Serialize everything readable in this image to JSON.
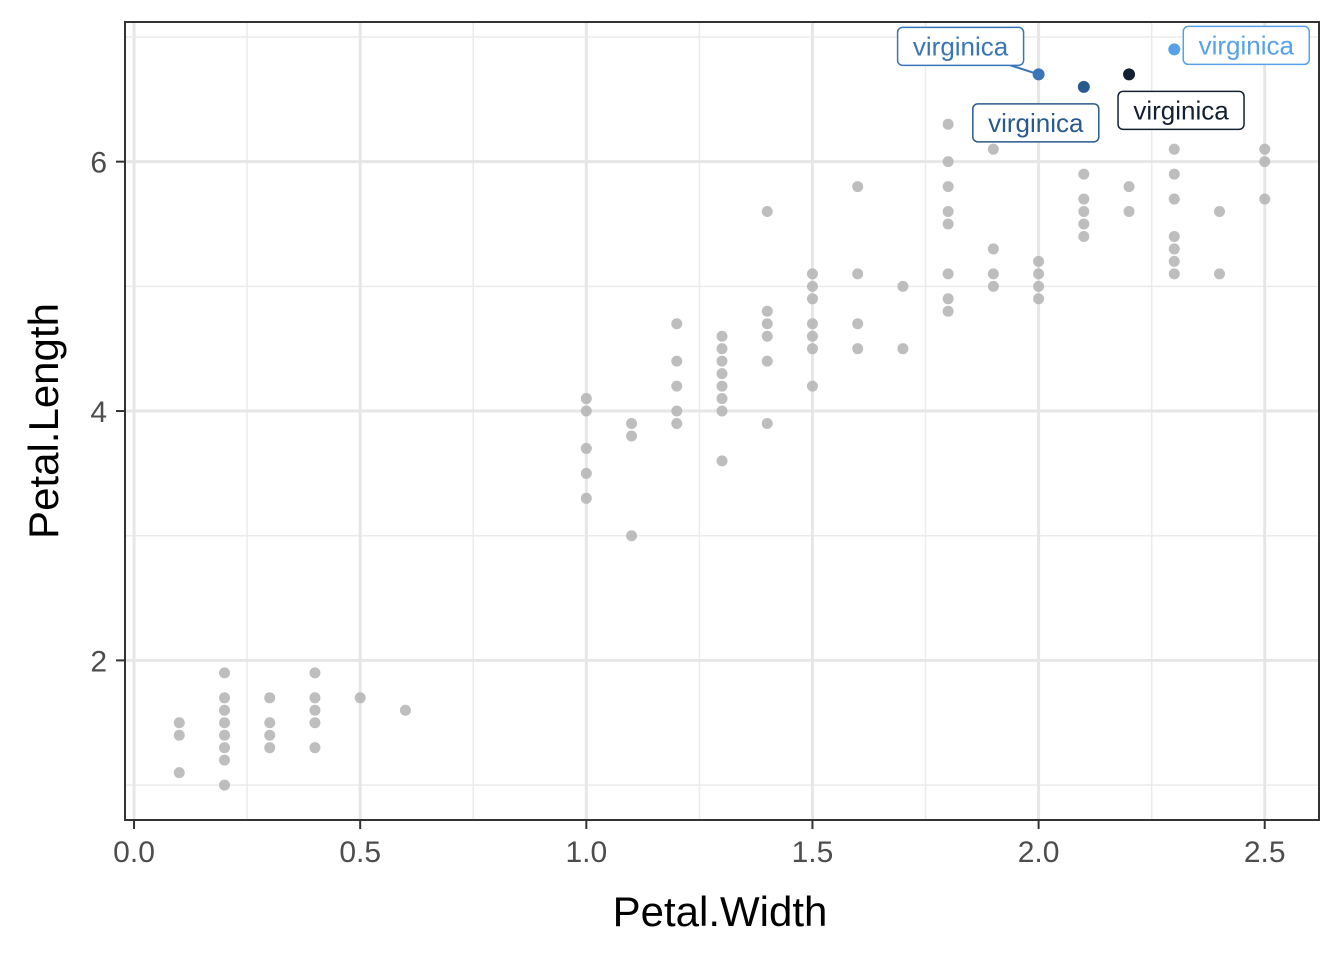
{
  "chart_data": {
    "type": "scatter",
    "xlabel": "Petal.Width",
    "ylabel": "Petal.Length",
    "xlim": [
      -0.02,
      2.62
    ],
    "ylim": [
      0.72,
      7.12
    ],
    "x_ticks": [
      0.0,
      0.5,
      1.0,
      1.5,
      2.0,
      2.5
    ],
    "x_tick_labels": [
      "0.0",
      "0.5",
      "1.0",
      "1.5",
      "2.0",
      "2.5"
    ],
    "y_ticks": [
      2,
      4,
      6
    ],
    "y_tick_labels": [
      "2",
      "4",
      "6"
    ],
    "x_minor_grid": [
      0.25,
      0.75,
      1.25,
      1.75,
      2.25
    ],
    "y_minor_grid": [
      1,
      3,
      5,
      7
    ],
    "grid": true,
    "legend": "none",
    "point_color": "#b3b3b3",
    "points": [
      [
        0.1,
        1.1
      ],
      [
        0.1,
        1.4
      ],
      [
        0.1,
        1.5
      ],
      [
        0.2,
        1.0
      ],
      [
        0.2,
        1.2
      ],
      [
        0.2,
        1.3
      ],
      [
        0.2,
        1.4
      ],
      [
        0.2,
        1.5
      ],
      [
        0.2,
        1.6
      ],
      [
        0.2,
        1.7
      ],
      [
        0.2,
        1.9
      ],
      [
        0.3,
        1.3
      ],
      [
        0.3,
        1.4
      ],
      [
        0.3,
        1.5
      ],
      [
        0.3,
        1.7
      ],
      [
        0.4,
        1.3
      ],
      [
        0.4,
        1.5
      ],
      [
        0.4,
        1.6
      ],
      [
        0.4,
        1.7
      ],
      [
        0.4,
        1.9
      ],
      [
        0.5,
        1.7
      ],
      [
        0.6,
        1.6
      ],
      [
        1.0,
        3.3
      ],
      [
        1.0,
        3.5
      ],
      [
        1.0,
        3.7
      ],
      [
        1.0,
        4.0
      ],
      [
        1.0,
        4.1
      ],
      [
        1.1,
        3.0
      ],
      [
        1.1,
        3.8
      ],
      [
        1.1,
        3.9
      ],
      [
        1.2,
        3.9
      ],
      [
        1.2,
        4.0
      ],
      [
        1.2,
        4.2
      ],
      [
        1.2,
        4.4
      ],
      [
        1.2,
        4.7
      ],
      [
        1.3,
        3.6
      ],
      [
        1.3,
        4.0
      ],
      [
        1.3,
        4.1
      ],
      [
        1.3,
        4.2
      ],
      [
        1.3,
        4.3
      ],
      [
        1.3,
        4.4
      ],
      [
        1.3,
        4.5
      ],
      [
        1.3,
        4.6
      ],
      [
        1.4,
        3.9
      ],
      [
        1.4,
        4.4
      ],
      [
        1.4,
        4.6
      ],
      [
        1.4,
        4.7
      ],
      [
        1.4,
        4.8
      ],
      [
        1.4,
        5.6
      ],
      [
        1.5,
        4.2
      ],
      [
        1.5,
        4.5
      ],
      [
        1.5,
        4.6
      ],
      [
        1.5,
        4.7
      ],
      [
        1.5,
        4.9
      ],
      [
        1.5,
        5.0
      ],
      [
        1.5,
        5.1
      ],
      [
        1.6,
        4.5
      ],
      [
        1.6,
        4.7
      ],
      [
        1.6,
        5.1
      ],
      [
        1.6,
        5.8
      ],
      [
        1.7,
        4.5
      ],
      [
        1.7,
        5.0
      ],
      [
        1.8,
        4.8
      ],
      [
        1.8,
        4.9
      ],
      [
        1.8,
        5.1
      ],
      [
        1.8,
        5.5
      ],
      [
        1.8,
        5.6
      ],
      [
        1.8,
        5.8
      ],
      [
        1.8,
        6.0
      ],
      [
        1.8,
        6.3
      ],
      [
        1.9,
        5.0
      ],
      [
        1.9,
        5.1
      ],
      [
        1.9,
        5.3
      ],
      [
        1.9,
        6.1
      ],
      [
        2.0,
        4.9
      ],
      [
        2.0,
        5.0
      ],
      [
        2.0,
        5.1
      ],
      [
        2.0,
        5.2
      ],
      [
        2.1,
        5.4
      ],
      [
        2.1,
        5.5
      ],
      [
        2.1,
        5.6
      ],
      [
        2.1,
        5.7
      ],
      [
        2.1,
        5.9
      ],
      [
        2.2,
        5.6
      ],
      [
        2.2,
        5.8
      ],
      [
        2.3,
        5.1
      ],
      [
        2.3,
        5.2
      ],
      [
        2.3,
        5.3
      ],
      [
        2.3,
        5.4
      ],
      [
        2.3,
        5.7
      ],
      [
        2.3,
        5.9
      ],
      [
        2.3,
        6.1
      ],
      [
        2.4,
        5.1
      ],
      [
        2.4,
        5.6
      ],
      [
        2.5,
        5.7
      ],
      [
        2.5,
        6.0
      ],
      [
        2.5,
        6.1
      ]
    ],
    "highlighted": [
      {
        "x": 2.0,
        "y": 6.7,
        "label": "virginica",
        "color": "#3a75b8"
      },
      {
        "x": 2.1,
        "y": 6.6,
        "label": "virginica",
        "color": "#295a8d"
      },
      {
        "x": 2.2,
        "y": 6.7,
        "label": "virginica",
        "color": "#132032"
      },
      {
        "x": 2.3,
        "y": 6.9,
        "label": "virginica",
        "color": "#56a1e8"
      }
    ]
  }
}
